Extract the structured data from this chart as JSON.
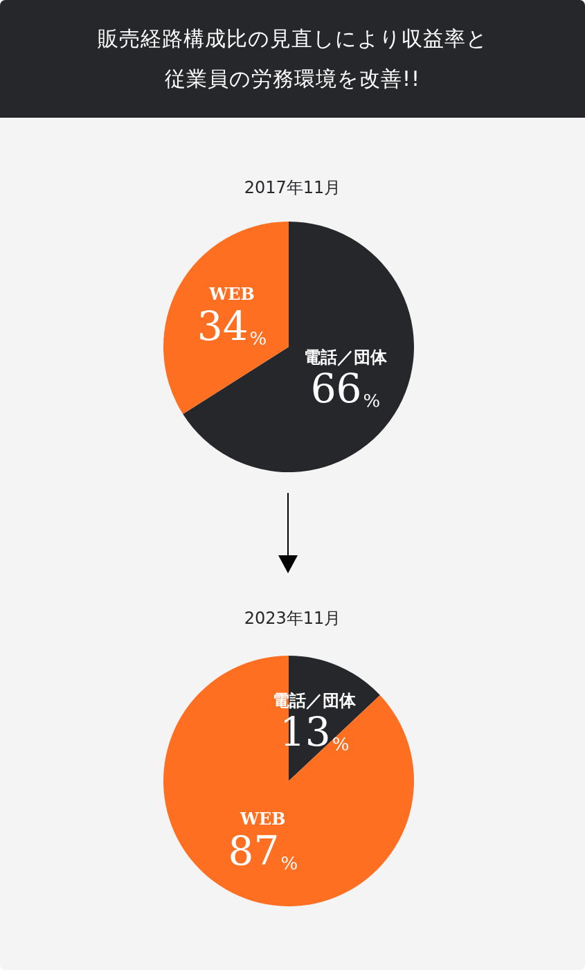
{
  "chart_data": [
    {
      "type": "pie",
      "title": "販売経路構成比の見直しにより収益率と従業員の労務環境を改善!!",
      "subtitle": "2017年11月",
      "categories": [
        "電話／団体",
        "WEB"
      ],
      "values": [
        66,
        34
      ],
      "colors": [
        "#26272a",
        "#ff6f21"
      ],
      "value_labels": [
        "66%",
        "34%"
      ],
      "legend": false
    },
    {
      "type": "pie",
      "title": "2023年11月",
      "categories": [
        "電話／団体",
        "WEB"
      ],
      "values": [
        13,
        87
      ],
      "colors": [
        "#26272a",
        "#ff6f21"
      ],
      "value_labels": [
        "13%",
        "87%"
      ],
      "legend": false
    }
  ]
}
